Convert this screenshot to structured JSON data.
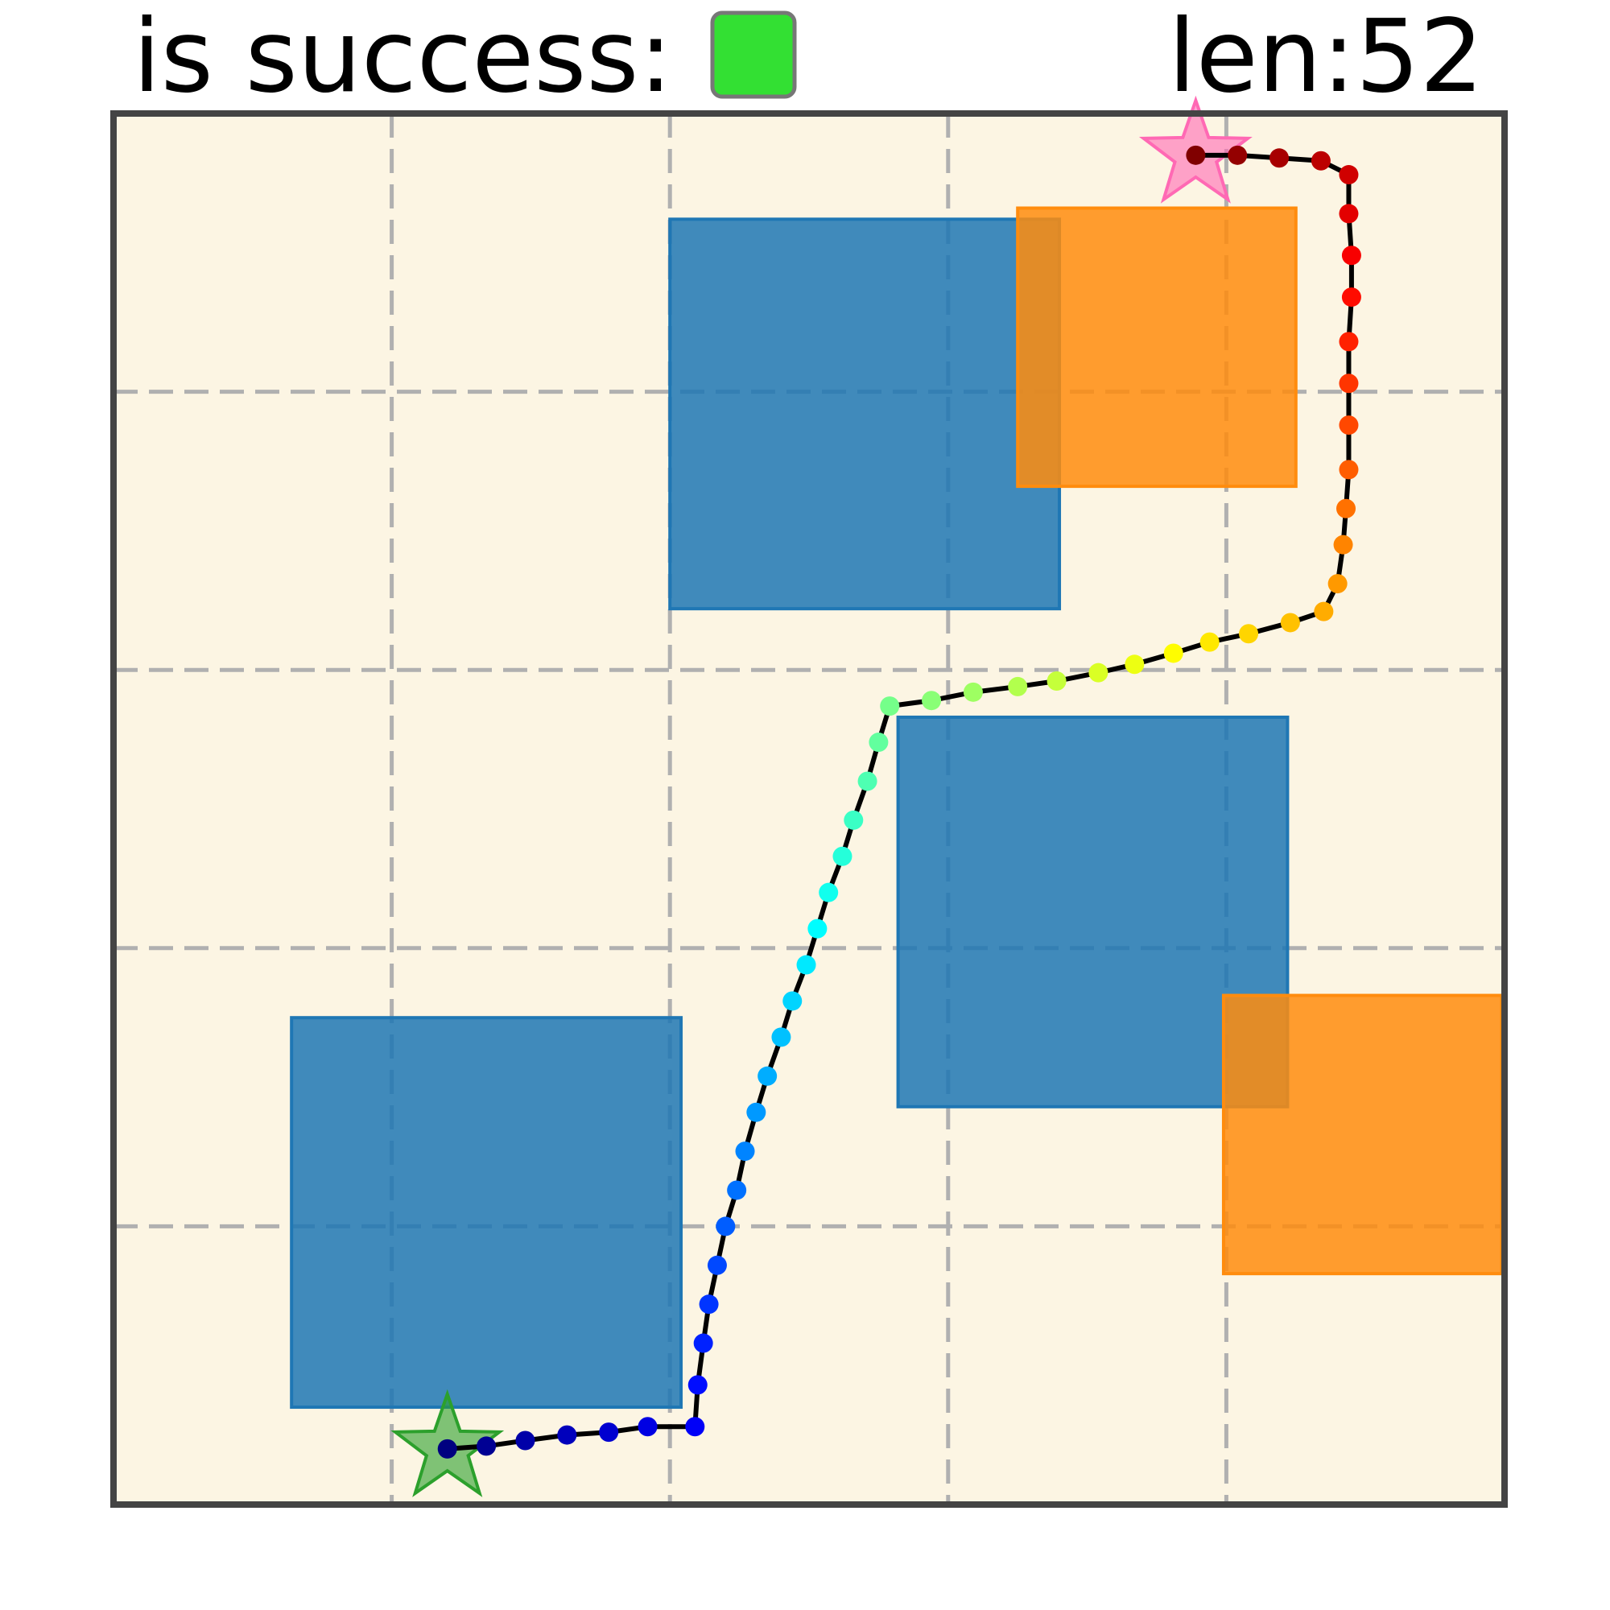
{
  "header": {
    "success_label": "is success:",
    "success": true,
    "success_color": "#33e033",
    "length_label": "len:52"
  },
  "map": {
    "xlim": [
      0,
      5
    ],
    "ylim": [
      0,
      5
    ],
    "xticks": [
      0,
      1,
      2,
      3,
      4,
      5
    ],
    "yticks": [
      0,
      1,
      2,
      3,
      4,
      5
    ],
    "grid": true,
    "background": "#fcf5e3",
    "obstacles": [
      {
        "color": "#1f77b4",
        "x": 2.0,
        "y": 3.22,
        "w": 1.4,
        "h": 1.4
      },
      {
        "color": "#1f77b4",
        "x": 2.82,
        "y": 1.43,
        "w": 1.4,
        "h": 1.4
      },
      {
        "color": "#1f77b4",
        "x": 0.64,
        "y": 0.35,
        "w": 1.4,
        "h": 1.4
      },
      {
        "color": "#ff8c0e",
        "x": 3.25,
        "y": 3.66,
        "w": 1.0,
        "h": 1.0
      },
      {
        "color": "#ff8c0e",
        "x": 3.99,
        "y": 0.83,
        "w": 1.0,
        "h": 1.0
      }
    ],
    "start": {
      "x": 1.2,
      "y": 0.2,
      "color": "#2ca02c"
    },
    "goal": {
      "x": 3.89,
      "y": 4.85,
      "color": "#ff69b4"
    },
    "trajectory": {
      "colormap": "jet",
      "line_color": "#000000",
      "x": [
        1.2,
        1.34,
        1.48,
        1.63,
        1.78,
        1.92,
        2.09,
        2.1,
        2.12,
        2.14,
        2.17,
        2.2,
        2.24,
        2.27,
        2.31,
        2.35,
        2.4,
        2.44,
        2.49,
        2.53,
        2.57,
        2.62,
        2.66,
        2.71,
        2.75,
        2.79,
        2.94,
        3.09,
        3.25,
        3.39,
        3.54,
        3.67,
        3.81,
        3.94,
        4.08,
        4.23,
        4.35,
        4.4,
        4.42,
        4.43,
        4.44,
        4.44,
        4.44,
        4.44,
        4.45,
        4.45,
        4.44,
        4.44,
        4.34,
        4.19,
        4.04,
        3.89
      ],
      "y": [
        0.2,
        0.21,
        0.23,
        0.25,
        0.26,
        0.28,
        0.28,
        0.43,
        0.58,
        0.72,
        0.86,
        1.0,
        1.13,
        1.27,
        1.41,
        1.54,
        1.68,
        1.81,
        1.94,
        2.07,
        2.2,
        2.33,
        2.46,
        2.6,
        2.74,
        2.87,
        2.89,
        2.92,
        2.94,
        2.96,
        2.99,
        3.02,
        3.06,
        3.1,
        3.13,
        3.17,
        3.21,
        3.31,
        3.45,
        3.58,
        3.72,
        3.88,
        4.03,
        4.18,
        4.34,
        4.49,
        4.64,
        4.78,
        4.83,
        4.84,
        4.85,
        4.85
      ]
    }
  }
}
